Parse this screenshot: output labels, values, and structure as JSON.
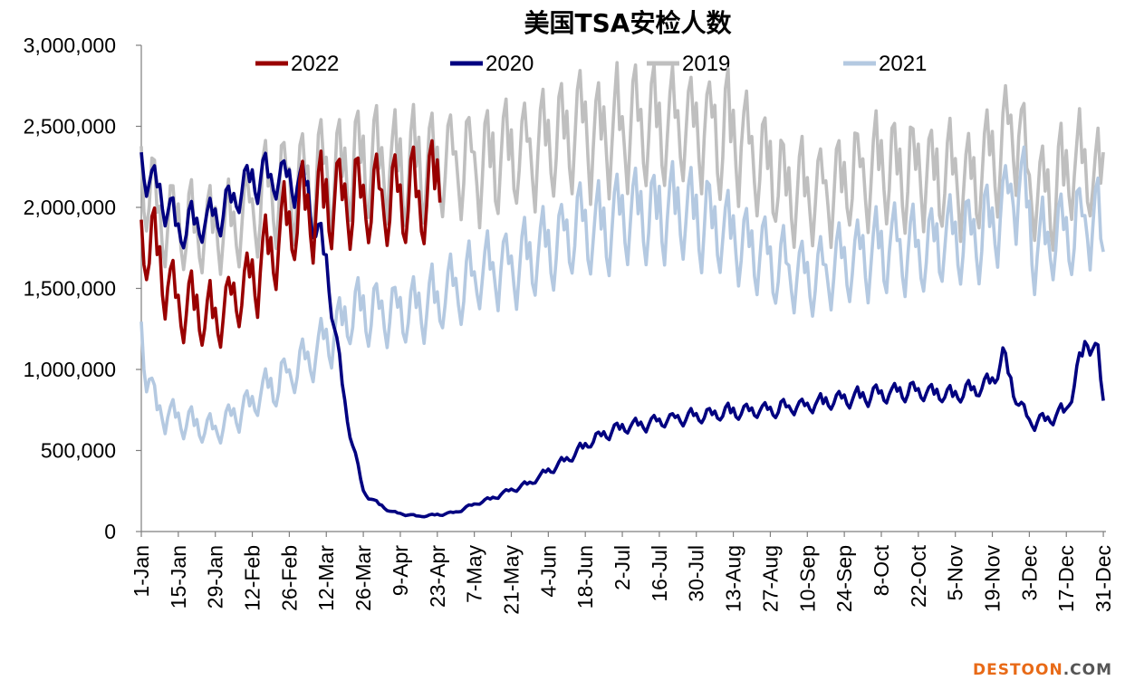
{
  "chart_data": {
    "type": "line",
    "title": "美国TSA安检人数",
    "xlabel": "",
    "ylabel": "",
    "ylim": [
      0,
      3000000
    ],
    "y_ticks": [
      0,
      500000,
      1000000,
      1500000,
      2000000,
      2500000,
      3000000
    ],
    "y_tick_labels": [
      "0",
      "500,000",
      "1,000,000",
      "1,500,000",
      "2,000,000",
      "2,500,000",
      "3,000,000"
    ],
    "x_range_days": [
      0,
      365
    ],
    "x_tick_days": [
      0,
      14,
      28,
      42,
      56,
      70,
      84,
      98,
      112,
      126,
      140,
      154,
      168,
      182,
      196,
      210,
      224,
      238,
      252,
      266,
      280,
      294,
      308,
      322,
      336,
      350,
      364
    ],
    "x_tick_labels": [
      "1-Jan",
      "15-Jan",
      "29-Jan",
      "12-Feb",
      "26-Feb",
      "12-Mar",
      "26-Mar",
      "9-Apr",
      "23-Apr",
      "7-May",
      "21-May",
      "4-Jun",
      "18-Jun",
      "2-Jul",
      "16-Jul",
      "30-Jul",
      "13-Aug",
      "27-Aug",
      "10-Sep",
      "24-Sep",
      "8-Oct",
      "22-Oct",
      "5-Nov",
      "19-Nov",
      "3-Dec",
      "17-Dec",
      "31-Dec"
    ],
    "legend_position": "top",
    "series": [
      {
        "name": "2019",
        "color": "#bfbfbf",
        "weekly_pattern": "strong",
        "anchors": [
          [
            0,
            2300000
          ],
          [
            7,
            2000000
          ],
          [
            21,
            1900000
          ],
          [
            35,
            1950000
          ],
          [
            49,
            2150000
          ],
          [
            63,
            2250000
          ],
          [
            77,
            2300000
          ],
          [
            91,
            2350000
          ],
          [
            105,
            2320000
          ],
          [
            119,
            2330000
          ],
          [
            133,
            2350000
          ],
          [
            147,
            2420000
          ],
          [
            161,
            2500000
          ],
          [
            175,
            2550000
          ],
          [
            189,
            2550000
          ],
          [
            203,
            2580000
          ],
          [
            217,
            2550000
          ],
          [
            231,
            2450000
          ],
          [
            238,
            2300000
          ],
          [
            245,
            2150000
          ],
          [
            259,
            2150000
          ],
          [
            273,
            2280000
          ],
          [
            287,
            2320000
          ],
          [
            301,
            2250000
          ],
          [
            315,
            2230000
          ],
          [
            325,
            2450000
          ],
          [
            332,
            2600000
          ],
          [
            336,
            2200000
          ],
          [
            343,
            2150000
          ],
          [
            350,
            2250000
          ],
          [
            357,
            2350000
          ],
          [
            362,
            2200000
          ],
          [
            364,
            2300000
          ]
        ]
      },
      {
        "name": "2021",
        "color": "#b4c9e1",
        "weekly_pattern": "strong",
        "anchors": [
          [
            0,
            1250000
          ],
          [
            5,
            800000
          ],
          [
            14,
            700000
          ],
          [
            28,
            640000
          ],
          [
            42,
            820000
          ],
          [
            56,
            1000000
          ],
          [
            70,
            1200000
          ],
          [
            77,
            1350000
          ],
          [
            84,
            1400000
          ],
          [
            98,
            1380000
          ],
          [
            112,
            1470000
          ],
          [
            126,
            1600000
          ],
          [
            140,
            1700000
          ],
          [
            154,
            1800000
          ],
          [
            168,
            1920000
          ],
          [
            182,
            1980000
          ],
          [
            196,
            2030000
          ],
          [
            210,
            2020000
          ],
          [
            224,
            1880000
          ],
          [
            238,
            1700000
          ],
          [
            252,
            1600000
          ],
          [
            266,
            1700000
          ],
          [
            280,
            1790000
          ],
          [
            294,
            1800000
          ],
          [
            308,
            1850000
          ],
          [
            322,
            1920000
          ],
          [
            332,
            2250000
          ],
          [
            338,
            1800000
          ],
          [
            350,
            1900000
          ],
          [
            357,
            1960000
          ],
          [
            362,
            2000000
          ],
          [
            364,
            1650000
          ]
        ]
      },
      {
        "name": "2020",
        "color": "#000080",
        "weekly_pattern": "medium",
        "anchors": [
          [
            0,
            2300000
          ],
          [
            14,
            1900000
          ],
          [
            28,
            1950000
          ],
          [
            42,
            2200000
          ],
          [
            56,
            2200000
          ],
          [
            63,
            2150000
          ],
          [
            66,
            1900000
          ],
          [
            70,
            1700000
          ],
          [
            73,
            1300000
          ],
          [
            77,
            800000
          ],
          [
            80,
            550000
          ],
          [
            84,
            250000
          ],
          [
            88,
            190000
          ],
          [
            95,
            120000
          ],
          [
            105,
            95000
          ],
          [
            112,
            105000
          ],
          [
            119,
            120000
          ],
          [
            126,
            170000
          ],
          [
            133,
            210000
          ],
          [
            140,
            260000
          ],
          [
            147,
            300000
          ],
          [
            154,
            380000
          ],
          [
            161,
            450000
          ],
          [
            168,
            540000
          ],
          [
            175,
            610000
          ],
          [
            182,
            650000
          ],
          [
            196,
            690000
          ],
          [
            210,
            720000
          ],
          [
            224,
            750000
          ],
          [
            238,
            760000
          ],
          [
            252,
            790000
          ],
          [
            266,
            830000
          ],
          [
            280,
            860000
          ],
          [
            294,
            880000
          ],
          [
            308,
            850000
          ],
          [
            322,
            930000
          ],
          [
            326,
            1100000
          ],
          [
            330,
            880000
          ],
          [
            336,
            680000
          ],
          [
            343,
            700000
          ],
          [
            350,
            760000
          ],
          [
            355,
            1050000
          ],
          [
            358,
            1200000
          ],
          [
            362,
            1100000
          ],
          [
            364,
            800000
          ]
        ]
      },
      {
        "name": "2022",
        "color": "#990000",
        "weekly_pattern": "strong",
        "anchors": [
          [
            0,
            1850000
          ],
          [
            4,
            1800000
          ],
          [
            14,
            1450000
          ],
          [
            28,
            1350000
          ],
          [
            42,
            1600000
          ],
          [
            56,
            1950000
          ],
          [
            63,
            2050000
          ],
          [
            70,
            2100000
          ],
          [
            84,
            2100000
          ],
          [
            98,
            2120000
          ],
          [
            105,
            2100000
          ],
          [
            110,
            2150000
          ],
          [
            113,
            2250000
          ]
        ]
      }
    ]
  },
  "watermark": {
    "main": "DESTOON",
    "suffix": ".COM"
  }
}
